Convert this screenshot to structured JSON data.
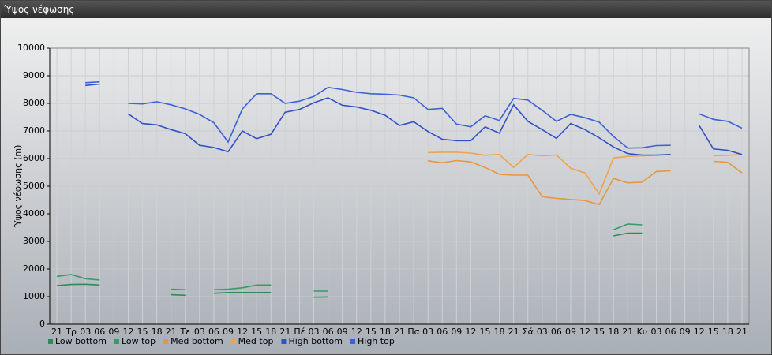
{
  "chart_data": {
    "type": "line",
    "title": "Ύψος νέφωσης",
    "y_label": "Ύψος νέφωσης (m)",
    "categories": [
      "21",
      "Τρ",
      "03",
      "06",
      "09",
      "12",
      "15",
      "18",
      "21",
      "Τε",
      "03",
      "06",
      "09",
      "12",
      "15",
      "18",
      "21",
      "Πέ",
      "03",
      "06",
      "09",
      "12",
      "15",
      "18",
      "21",
      "Πα",
      "03",
      "06",
      "09",
      "12",
      "15",
      "18",
      "21",
      "Σά",
      "03",
      "06",
      "09",
      "12",
      "15",
      "18",
      "21",
      "Κυ",
      "03",
      "06",
      "09",
      "12",
      "15",
      "18",
      "21"
    ],
    "ylim": [
      0,
      10000
    ],
    "yticks": [
      0,
      1000,
      2000,
      3000,
      4000,
      5000,
      6000,
      7000,
      8000,
      9000,
      10000
    ],
    "grid": true,
    "series": [
      {
        "name": "Low bottom",
        "color": "#2e8b57",
        "values": [
          1400,
          1440,
          1450,
          1420,
          null,
          null,
          null,
          null,
          1070,
          1050,
          null,
          1120,
          1150,
          1150,
          1150,
          1150,
          null,
          null,
          980,
          990,
          null,
          null,
          null,
          null,
          null,
          null,
          null,
          null,
          null,
          null,
          null,
          null,
          null,
          null,
          null,
          null,
          null,
          null,
          null,
          3200,
          3300,
          3300,
          null,
          null,
          null,
          null,
          null,
          null,
          null
        ]
      },
      {
        "name": "Low top",
        "color": "#3a9a66",
        "values": [
          1730,
          1800,
          1650,
          1600,
          null,
          null,
          null,
          null,
          1270,
          1250,
          null,
          1250,
          1270,
          1320,
          1420,
          1420,
          null,
          null,
          1200,
          1200,
          null,
          null,
          null,
          null,
          null,
          null,
          null,
          null,
          null,
          null,
          null,
          null,
          null,
          null,
          null,
          null,
          null,
          null,
          null,
          3420,
          3630,
          3600,
          null,
          null,
          null,
          null,
          null,
          null,
          null
        ]
      },
      {
        "name": "Med bottom",
        "color": "#e8963e",
        "values": [
          null,
          null,
          null,
          null,
          null,
          null,
          null,
          null,
          null,
          null,
          null,
          null,
          null,
          null,
          null,
          null,
          null,
          null,
          null,
          null,
          null,
          null,
          null,
          null,
          null,
          null,
          5920,
          5850,
          5930,
          5880,
          5680,
          5430,
          5400,
          5400,
          4620,
          4560,
          4520,
          4480,
          4330,
          5280,
          5120,
          5150,
          5530,
          5560,
          null,
          null,
          5900,
          5870,
          5480
        ]
      },
      {
        "name": "Med top",
        "color": "#f0a24c",
        "values": [
          null,
          null,
          null,
          null,
          null,
          null,
          null,
          null,
          null,
          null,
          null,
          null,
          null,
          null,
          null,
          null,
          null,
          null,
          null,
          null,
          null,
          null,
          null,
          null,
          null,
          null,
          6220,
          6230,
          6230,
          6200,
          6120,
          6150,
          5680,
          6150,
          6100,
          6130,
          5650,
          5480,
          4720,
          6020,
          6080,
          6100,
          6120,
          6150,
          null,
          null,
          6100,
          6120,
          6150
        ]
      },
      {
        "name": "High bottom",
        "color": "#3050c8",
        "values": [
          null,
          null,
          8650,
          8700,
          null,
          7620,
          7270,
          7220,
          7050,
          6900,
          6480,
          6400,
          6250,
          7000,
          6720,
          6880,
          7680,
          7780,
          8020,
          8200,
          7930,
          7870,
          7750,
          7570,
          7200,
          7330,
          6980,
          6700,
          6650,
          6650,
          7150,
          6920,
          7950,
          7350,
          7050,
          6730,
          7270,
          7050,
          6750,
          6420,
          6180,
          6130,
          6130,
          6150,
          null,
          7200,
          6350,
          6300,
          6150
        ]
      },
      {
        "name": "High top",
        "color": "#3d62d6",
        "values": [
          null,
          null,
          8750,
          8780,
          null,
          8000,
          7980,
          8060,
          7950,
          7800,
          7600,
          7300,
          6600,
          7800,
          8350,
          8350,
          8000,
          8080,
          8250,
          8580,
          8500,
          8400,
          8350,
          8330,
          8300,
          8200,
          7780,
          7820,
          7250,
          7150,
          7550,
          7380,
          8180,
          8120,
          7750,
          7350,
          7600,
          7480,
          7320,
          6800,
          6380,
          6390,
          6470,
          6480,
          null,
          7620,
          7420,
          7350,
          7100
        ]
      }
    ]
  }
}
